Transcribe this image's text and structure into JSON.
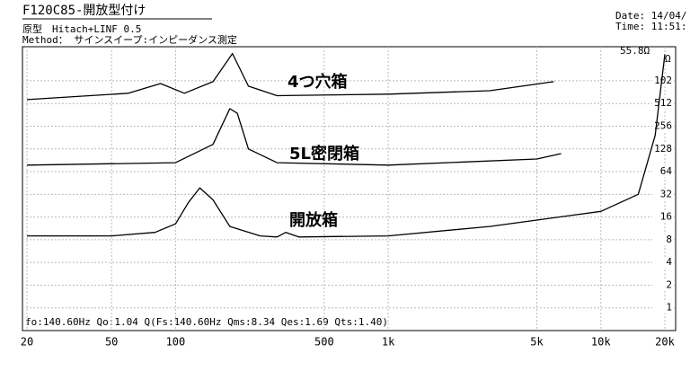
{
  "chart_data": {
    "type": "line",
    "title": "F120C85-開放型付け",
    "subtitle": "原型　Hitach+LINF 0.5",
    "method": "Method： サインスイープ:インピーダンス測定",
    "date": "Date: 14/04/",
    "time": "Time: 11:51:",
    "peak_label": "55.8Ω",
    "y_unit": "Ω",
    "footer": "fo:140.60Hz  Qo:1.04 Q(Fs:140.60Hz  Qms:8.34 Qes:1.69 Qts:1.40)",
    "log_x": true,
    "log_y": true,
    "grid": true,
    "xlim": [
      20,
      20000
    ],
    "xticks": [
      20,
      50,
      100,
      500,
      {
        "value": 1000,
        "label": "1k"
      },
      {
        "value": 5000,
        "label": "5k"
      },
      {
        "value": 10000,
        "label": "10k"
      },
      {
        "value": 20000,
        "label": "20k"
      }
    ],
    "ylim": [
      0.5,
      2896
    ],
    "yticks": [
      1,
      2,
      4,
      8,
      16,
      32,
      64,
      128,
      256,
      512,
      {
        "value": 1024,
        "label": "102"
      }
    ],
    "series": [
      {
        "name": "4つ穴箱",
        "color": "#000000",
        "x": [
          20,
          60,
          85,
          110,
          150,
          185,
          220,
          300,
          1000,
          3000,
          6000
        ],
        "values": [
          576,
          700,
          942,
          700,
          996,
          2350,
          868,
          650,
          680,
          755,
          996
        ]
      },
      {
        "name": "5L密閉箱",
        "color": "#000000",
        "x": [
          20,
          100,
          150,
          180,
          195,
          220,
          300,
          1000,
          5000,
          6500
        ],
        "values": [
          78,
          84,
          147,
          437,
          380,
          128,
          84,
          78,
          94,
          111
        ]
      },
      {
        "name": "開放箱",
        "color": "#000000",
        "x": [
          20,
          50,
          80,
          100,
          115,
          130,
          150,
          180,
          250,
          300,
          330,
          380,
          1000,
          3000,
          10000,
          15000,
          18000,
          20000
        ],
        "values": [
          9,
          9,
          10,
          13,
          25,
          39,
          27,
          12,
          9,
          8.7,
          10,
          8.7,
          9,
          12,
          19,
          32,
          193,
          2300
        ]
      }
    ]
  }
}
